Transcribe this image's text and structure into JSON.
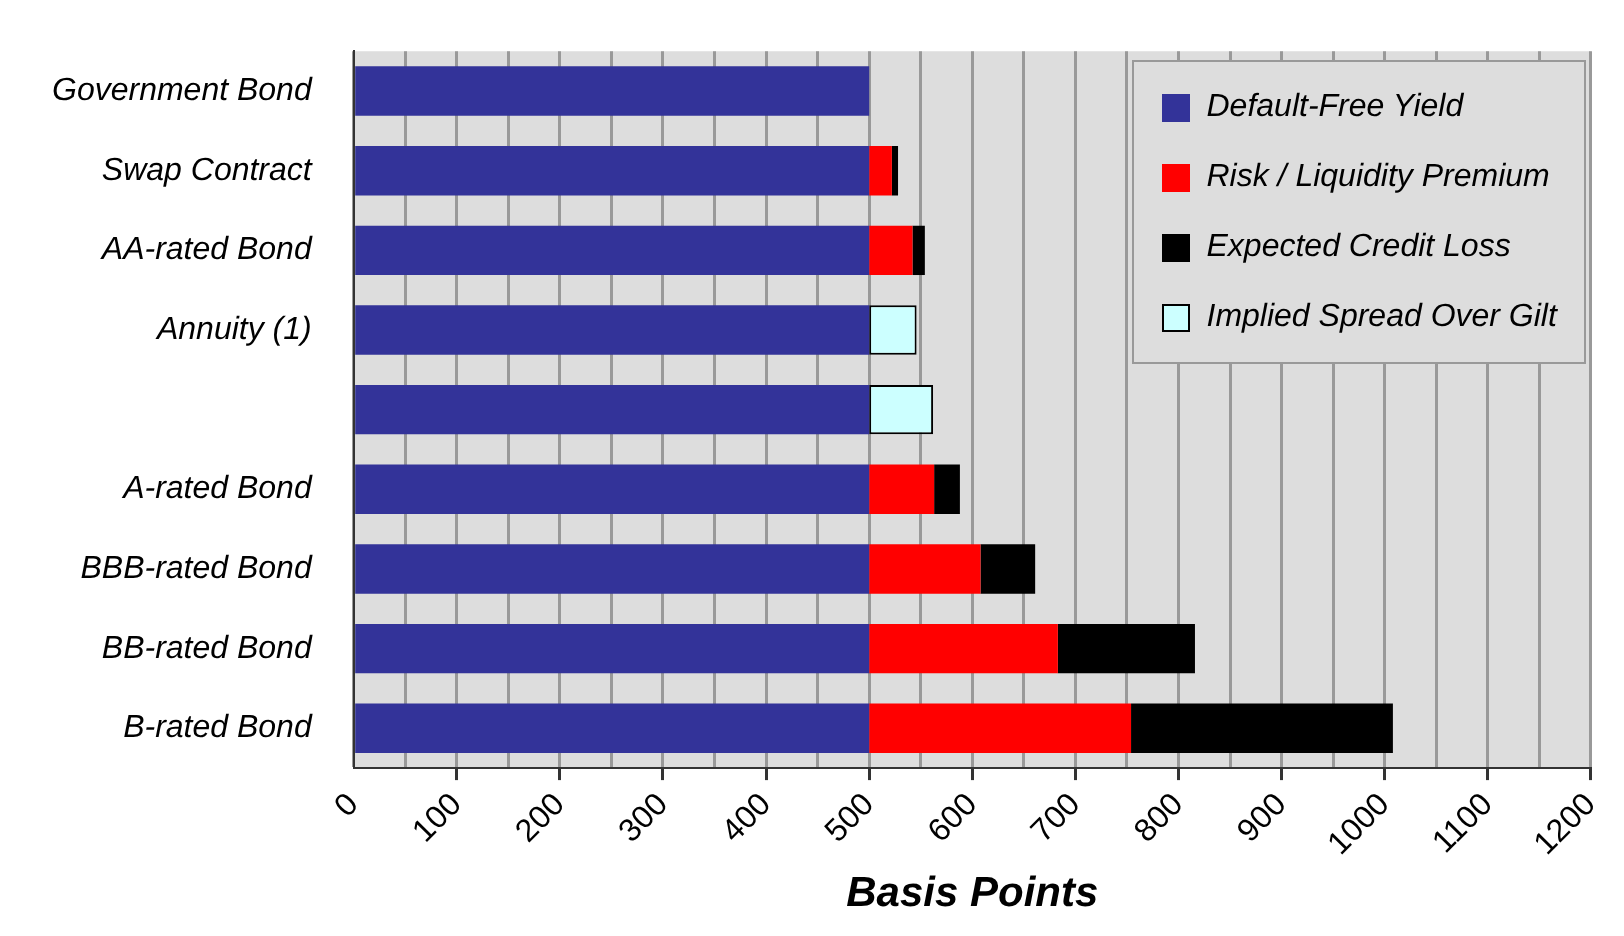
{
  "chart_data": {
    "type": "bar",
    "orientation": "horizontal",
    "stacked": true,
    "categories": [
      "Government Bond",
      "Swap Contract",
      "AA-rated Bond",
      "Annuity (1)",
      null,
      "A-rated Bond",
      "BBB-rated Bond",
      "BB-rated Bond",
      "B-rated Bond"
    ],
    "series": [
      {
        "name": "Default-Free Yield",
        "color": "#333399",
        "values": [
          500,
          500,
          500,
          500,
          500,
          500,
          500,
          500,
          500
        ]
      },
      {
        "name": "Risk / Liquidity Premium",
        "color": "#ff0000",
        "values": [
          null,
          22,
          42,
          null,
          null,
          63,
          108,
          183,
          254
        ]
      },
      {
        "name": "Expected Credit Loss",
        "color": "#000000",
        "values": [
          null,
          6,
          12,
          null,
          null,
          25,
          53,
          133,
          254
        ]
      },
      {
        "name": "Implied Spread Over Gilt",
        "color": "#ccffff",
        "values": [
          null,
          null,
          null,
          46,
          62,
          null,
          null,
          null,
          null
        ]
      }
    ],
    "xlabel": "Basis Points",
    "xlim": [
      0,
      1200
    ],
    "xticks": [
      0,
      {
        "value": 50,
        "label": null
      },
      100,
      {
        "value": 150,
        "label": null
      },
      200,
      {
        "value": 250,
        "label": null
      },
      300,
      {
        "value": 350,
        "label": null
      },
      400,
      {
        "value": 450,
        "label": null
      },
      500,
      {
        "value": 550,
        "label": null
      },
      600,
      {
        "value": 650,
        "label": null
      },
      700,
      {
        "value": 750,
        "label": null
      },
      800,
      {
        "value": 850,
        "label": null
      },
      900,
      {
        "value": 950,
        "label": null
      },
      1000,
      {
        "value": 1050,
        "label": null
      },
      1100,
      {
        "value": 1150,
        "label": null
      },
      1200
    ],
    "grid": "x",
    "legend": "top right"
  }
}
